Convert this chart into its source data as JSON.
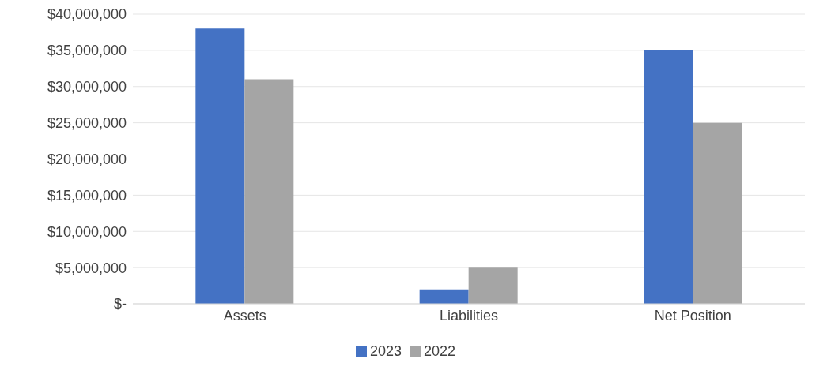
{
  "chart_data": {
    "type": "bar",
    "categories": [
      "Assets",
      "Liabilities",
      "Net Position"
    ],
    "series": [
      {
        "name": "2023",
        "color": "#4472c4",
        "values": [
          38000000,
          2000000,
          35000000
        ]
      },
      {
        "name": "2022",
        "color": "#a5a5a5",
        "values": [
          31000000,
          5000000,
          25000000
        ]
      }
    ],
    "ylim": [
      0,
      40000000
    ],
    "yticks": [
      {
        "value": 0,
        "label": "$-"
      },
      {
        "value": 5000000,
        "label": "$5,000,000"
      },
      {
        "value": 10000000,
        "label": "$10,000,000"
      },
      {
        "value": 15000000,
        "label": "$15,000,000"
      },
      {
        "value": 20000000,
        "label": "$20,000,000"
      },
      {
        "value": 25000000,
        "label": "$25,000,000"
      },
      {
        "value": 30000000,
        "label": "$30,000,000"
      },
      {
        "value": 35000000,
        "label": "$35,000,000"
      },
      {
        "value": 40000000,
        "label": "$40,000,000"
      }
    ],
    "grid": "y",
    "legend": "bottom"
  }
}
